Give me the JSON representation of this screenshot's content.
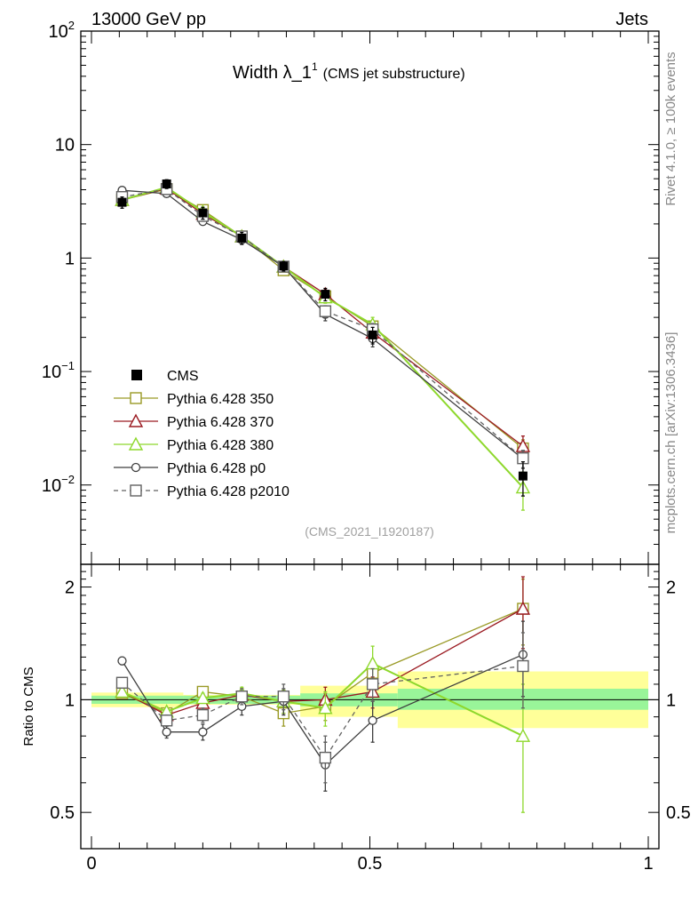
{
  "header": {
    "energy_label": "13000 GeV pp",
    "process_label": "Jets"
  },
  "chart_data": [
    {
      "panel": "main",
      "type": "line",
      "title": "Width λ_1",
      "title_superscript": "1",
      "subtitle": "(CMS jet substructure)",
      "analysis_id": "(CMS_2021_I1920187)",
      "y_scale": "log",
      "ylim": [
        0.002,
        100
      ],
      "xlim": [
        0,
        1
      ],
      "y_ticks": [
        {
          "value": 0.01,
          "base": "10",
          "exp": "−2"
        },
        {
          "value": 0.1,
          "base": "10",
          "exp": "−1"
        },
        {
          "value": 1,
          "label": "1"
        },
        {
          "value": 10,
          "label": "10"
        },
        {
          "value": 100,
          "base": "10",
          "exp": "2"
        }
      ],
      "legend_position": "bottom-left",
      "data": {
        "name": "CMS",
        "color": "#000000",
        "x": [
          0.055,
          0.135,
          0.2,
          0.27,
          0.345,
          0.42,
          0.505,
          0.775
        ],
        "values": [
          3.1,
          4.5,
          2.5,
          1.5,
          0.85,
          0.48,
          0.21,
          0.012
        ],
        "err_tot": [
          0.35,
          0.4,
          0.3,
          0.18,
          0.08,
          0.06,
          0.035,
          0.004
        ]
      },
      "series": [
        {
          "name": "Pythia 6.428 350",
          "color": "#9a9a26",
          "marker": "square",
          "dash": false,
          "values": [
            3.25,
            4.05,
            2.65,
            1.55,
            0.78,
            0.46,
            0.25,
            0.021
          ],
          "errors": [
            0.06,
            0.06,
            0.05,
            0.04,
            0.03,
            0.03,
            0.02,
            0.004
          ]
        },
        {
          "name": "Pythia 6.428 370",
          "color": "#9b1b22",
          "marker": "triangle",
          "dash": false,
          "values": [
            3.25,
            4.1,
            2.45,
            1.55,
            0.84,
            0.48,
            0.22,
            0.022
          ],
          "errors": [
            0.06,
            0.06,
            0.05,
            0.04,
            0.03,
            0.03,
            0.02,
            0.005
          ]
        },
        {
          "name": "Pythia 6.428 380",
          "color": "#8ed82c",
          "marker": "triangle",
          "dash": false,
          "values": [
            3.25,
            4.2,
            2.55,
            1.55,
            0.84,
            0.45,
            0.26,
            0.0095
          ],
          "errors": [
            0.06,
            0.06,
            0.05,
            0.04,
            0.03,
            0.05,
            0.04,
            0.0035
          ]
        },
        {
          "name": "Pythia 6.428 p0",
          "color": "#3f3f3f",
          "marker": "circle",
          "dash": false,
          "values": [
            3.95,
            3.7,
            2.1,
            1.45,
            0.84,
            0.32,
            0.195,
            0.017
          ],
          "errors": [
            0.06,
            0.06,
            0.05,
            0.04,
            0.03,
            0.04,
            0.03,
            0.003
          ]
        },
        {
          "name": "Pythia 6.428 p2010",
          "color": "#626262",
          "marker": "square",
          "dash": true,
          "values": [
            3.45,
            4.05,
            2.35,
            1.55,
            0.84,
            0.34,
            0.235,
            0.0172
          ],
          "errors": [
            0.06,
            0.06,
            0.05,
            0.04,
            0.03,
            0.04,
            0.03,
            0.003
          ]
        }
      ]
    },
    {
      "panel": "ratio",
      "type": "line",
      "ylabel": "Ratio to CMS",
      "ylim": [
        0.4,
        2.3
      ],
      "y_scale": "log",
      "xlim": [
        0,
        1
      ],
      "x_ticks": [
        {
          "value": 0,
          "label": "0"
        },
        {
          "value": 0.5,
          "label": "0.5"
        },
        {
          "value": 1,
          "label": "1"
        }
      ],
      "y_ticks": [
        {
          "value": 0.5,
          "label": "0.5"
        },
        {
          "value": 1,
          "label": "1"
        },
        {
          "value": 2,
          "label": "2"
        }
      ],
      "bins": [
        [
          0,
          0.165
        ],
        [
          0.165,
          0.375
        ],
        [
          0.375,
          0.55
        ],
        [
          0.55,
          1.0
        ]
      ],
      "band_stat": [
        [
          0.975,
          1.025
        ],
        [
          0.975,
          1.025
        ],
        [
          0.96,
          1.04
        ],
        [
          0.94,
          1.07
        ]
      ],
      "band_tot": [
        [
          0.955,
          1.045
        ],
        [
          0.97,
          1.03
        ],
        [
          0.9,
          1.09
        ],
        [
          0.84,
          1.19
        ]
      ],
      "x": [
        0.055,
        0.135,
        0.2,
        0.27,
        0.345,
        0.42,
        0.505,
        0.775
      ],
      "series": [
        {
          "name": "Pythia 6.428 350",
          "values": [
            1.04,
            0.92,
            1.05,
            1.02,
            0.92,
            0.96,
            1.18,
            1.75
          ],
          "errors": [
            0.02,
            0.02,
            0.03,
            0.04,
            0.07,
            0.08,
            0.1,
            0.35
          ]
        },
        {
          "name": "Pythia 6.428 370",
          "values": [
            1.05,
            0.91,
            0.98,
            1.03,
            0.99,
            1.0,
            1.05,
            1.75
          ],
          "errors": [
            0.02,
            0.02,
            0.03,
            0.04,
            0.07,
            0.08,
            0.1,
            0.38
          ]
        },
        {
          "name": "Pythia 6.428 380",
          "values": [
            1.05,
            0.93,
            1.01,
            1.04,
            0.99,
            0.95,
            1.25,
            0.8
          ],
          "errors": [
            0.02,
            0.02,
            0.03,
            0.04,
            0.07,
            0.1,
            0.14,
            0.3
          ]
        },
        {
          "name": "Pythia 6.428 p0",
          "values": [
            1.27,
            0.82,
            0.82,
            0.96,
            0.99,
            0.67,
            0.88,
            1.32
          ],
          "errors": [
            0.03,
            0.03,
            0.04,
            0.05,
            0.08,
            0.1,
            0.11,
            0.3
          ]
        },
        {
          "name": "Pythia 6.428 p2010",
          "values": [
            1.11,
            0.88,
            0.91,
            1.02,
            1.02,
            0.7,
            1.1,
            1.23
          ],
          "errors": [
            0.03,
            0.03,
            0.04,
            0.05,
            0.08,
            0.1,
            0.11,
            0.28
          ]
        }
      ]
    }
  ],
  "side_labels": {
    "rivet": "Rivet 4.1.0, ≥ 100k events",
    "mcplots": "mcplots.cern.ch [arXiv:1306.3436]"
  }
}
